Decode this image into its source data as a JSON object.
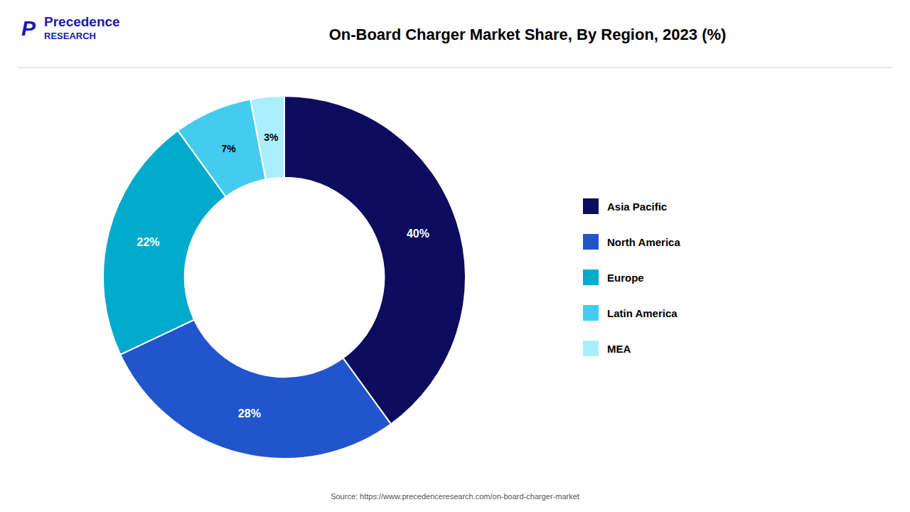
{
  "chart_data": {
    "type": "pie",
    "title": "On-Board Charger Market Share, By Region, 2023 (%)",
    "categories": [
      "Asia Pacific",
      "North America",
      "Europe",
      "Latin America",
      "MEA"
    ],
    "values": [
      40,
      28,
      22,
      7,
      3
    ],
    "value_labels": [
      "40%",
      "28%",
      "22%",
      "7%",
      "3%"
    ],
    "colors": [
      "#0d0d5e",
      "#2255cc",
      "#00aacc",
      "#44ccee",
      "#aaeeff"
    ],
    "data_labels": true,
    "legend": "right",
    "source": "Source: https://www.precedenceresearch.com/on-board-charger-market",
    "annotations": [
      "P",
      "Precedence",
      "RESEARCH"
    ]
  }
}
